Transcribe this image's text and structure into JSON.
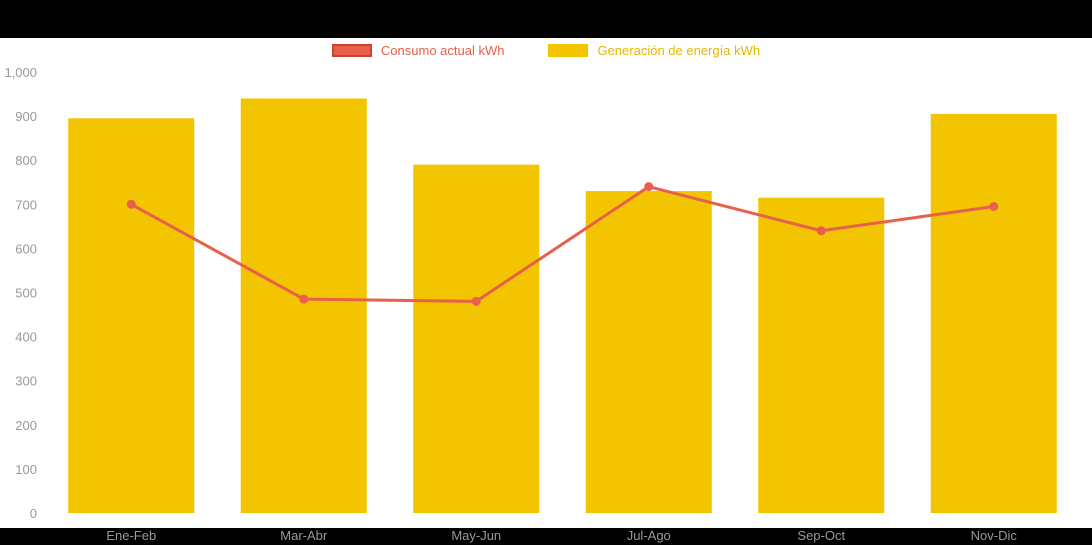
{
  "page": {
    "background_color": "#000000",
    "panel_color": "#ffffff"
  },
  "legend": {
    "position": "top-center",
    "items": [
      {
        "label": "Consumo actual kWh",
        "color": "#e8604a",
        "border_color": "#c94432",
        "label_color": "#e8604a",
        "series_type": "line"
      },
      {
        "label": "Generación de energía kWh",
        "color": "#f2c500",
        "border_color": "#f2c500",
        "label_color": "#e6b800",
        "series_type": "bar"
      }
    ]
  },
  "chart_data": {
    "type": "bar",
    "subtype": "bar-line-combo",
    "title": "",
    "xlabel": "",
    "ylabel": "",
    "categories": [
      "Ene-Feb",
      "Mar-Abr",
      "May-Jun",
      "Jul-Ago",
      "Sep-Oct",
      "Nov-Dic"
    ],
    "series": [
      {
        "name": "Generación de energía kWh",
        "type": "bar",
        "color": "#f2c500",
        "values": [
          895,
          940,
          790,
          730,
          715,
          905
        ]
      },
      {
        "name": "Consumo actual kWh",
        "type": "line",
        "color": "#e8604a",
        "values": [
          700,
          485,
          480,
          740,
          640,
          695
        ]
      }
    ],
    "ylim": [
      0,
      1000
    ],
    "y_tick_step": 100,
    "y_tick_labels": [
      "0",
      "100",
      "200",
      "300",
      "400",
      "500",
      "600",
      "700",
      "800",
      "900",
      "1,000"
    ],
    "grid": false,
    "legend_position": "top-center",
    "axis_label_color": "#999999",
    "units": "kWh"
  }
}
